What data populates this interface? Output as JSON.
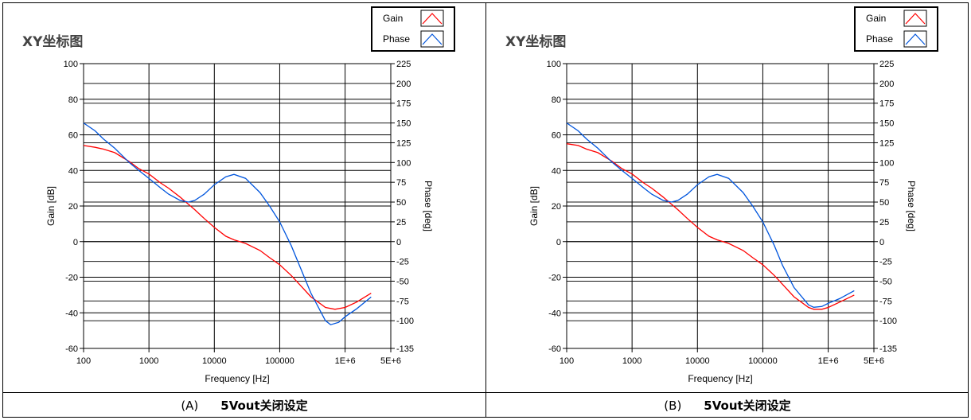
{
  "chart_data": [
    {
      "type": "line",
      "panel_label": "(A)",
      "caption": "5Vout关闭设定",
      "title": "XY坐标图",
      "xlabel": "Frequency [Hz]",
      "ylabel": "Gain [dB]",
      "y2label": "Phase [deg]",
      "x_scale": "log",
      "xlim": [
        100,
        5000000
      ],
      "ylim": [
        -60,
        100
      ],
      "y2lim": [
        -135,
        225
      ],
      "x_ticks": [
        "100",
        "1000",
        "10000",
        "100000",
        "1E+6",
        "5E+6"
      ],
      "y_ticks": [
        "100",
        "80",
        "60",
        "40",
        "20",
        "0",
        "-20",
        "-40",
        "-60"
      ],
      "y2_ticks": [
        "225",
        "200",
        "175",
        "150",
        "125",
        "100",
        "75",
        "50",
        "25",
        "0",
        "-25",
        "-50",
        "-75",
        "-100",
        "-135"
      ],
      "grid": true,
      "legend": "top-right",
      "series": [
        {
          "name": "Gain",
          "axis": "left",
          "color": "#ff0000",
          "x": [
            100,
            150,
            200,
            300,
            500,
            700,
            1000,
            1500,
            2000,
            3000,
            5000,
            7000,
            10000,
            15000,
            20000,
            30000,
            50000,
            70000,
            100000,
            150000,
            200000,
            300000,
            500000,
            700000,
            1000000,
            1500000,
            2500000
          ],
          "y": [
            54,
            53,
            52,
            50,
            45,
            41,
            38,
            33,
            30,
            25,
            18,
            13,
            8,
            3,
            1,
            -1,
            -5,
            -9,
            -13,
            -19,
            -24,
            -31,
            -37,
            -38,
            -37,
            -34,
            -29
          ]
        },
        {
          "name": "Phase",
          "axis": "right",
          "color": "#0055dd",
          "x": [
            100,
            150,
            200,
            300,
            500,
            700,
            1000,
            1500,
            2000,
            3000,
            4000,
            5000,
            7000,
            10000,
            15000,
            20000,
            30000,
            50000,
            70000,
            100000,
            150000,
            200000,
            300000,
            500000,
            600000,
            800000,
            1000000,
            1500000,
            2500000
          ],
          "y": [
            150,
            140,
            130,
            118,
            100,
            90,
            80,
            68,
            60,
            52,
            50,
            52,
            60,
            72,
            82,
            85,
            80,
            62,
            45,
            25,
            -5,
            -30,
            -65,
            -100,
            -105,
            -102,
            -95,
            -85,
            -70
          ]
        }
      ]
    },
    {
      "type": "line",
      "panel_label": "(B)",
      "caption": "5Vout关闭设定",
      "title": "XY坐标图",
      "xlabel": "Frequency [Hz]",
      "ylabel": "Gain [dB]",
      "y2label": "Phase [deg]",
      "x_scale": "log",
      "xlim": [
        100,
        5000000
      ],
      "ylim": [
        -60,
        100
      ],
      "y2lim": [
        -135,
        225
      ],
      "x_ticks": [
        "100",
        "1000",
        "10000",
        "100000",
        "1E+6",
        "5E+6"
      ],
      "y_ticks": [
        "100",
        "80",
        "60",
        "40",
        "20",
        "0",
        "-20",
        "-40",
        "-60"
      ],
      "y2_ticks": [
        "225",
        "200",
        "175",
        "150",
        "125",
        "100",
        "75",
        "50",
        "25",
        "0",
        "-25",
        "-50",
        "-75",
        "-100",
        "-135"
      ],
      "grid": true,
      "legend": "top-right",
      "series": [
        {
          "name": "Gain",
          "axis": "left",
          "color": "#ff0000",
          "x": [
            100,
            150,
            200,
            300,
            500,
            700,
            1000,
            1500,
            2000,
            3000,
            5000,
            7000,
            10000,
            15000,
            20000,
            30000,
            50000,
            70000,
            100000,
            150000,
            200000,
            300000,
            500000,
            600000,
            800000,
            1000000,
            1500000,
            2500000
          ],
          "y": [
            55,
            54,
            52,
            50,
            45,
            41,
            38,
            33,
            30,
            25,
            18,
            13,
            8,
            3,
            1,
            -1,
            -5,
            -9,
            -13,
            -19,
            -24,
            -31,
            -37,
            -38,
            -38,
            -37,
            -34,
            -30
          ]
        },
        {
          "name": "Phase",
          "axis": "right",
          "color": "#0055dd",
          "x": [
            100,
            150,
            200,
            300,
            500,
            700,
            1000,
            1500,
            2000,
            3000,
            4000,
            5000,
            7000,
            10000,
            15000,
            20000,
            30000,
            50000,
            70000,
            100000,
            150000,
            200000,
            300000,
            500000,
            600000,
            800000,
            1000000,
            1500000,
            2500000
          ],
          "y": [
            150,
            140,
            130,
            118,
            100,
            90,
            80,
            68,
            60,
            52,
            50,
            52,
            60,
            72,
            82,
            85,
            80,
            62,
            45,
            25,
            -5,
            -30,
            -58,
            -80,
            -83,
            -82,
            -78,
            -72,
            -62
          ]
        }
      ]
    }
  ]
}
